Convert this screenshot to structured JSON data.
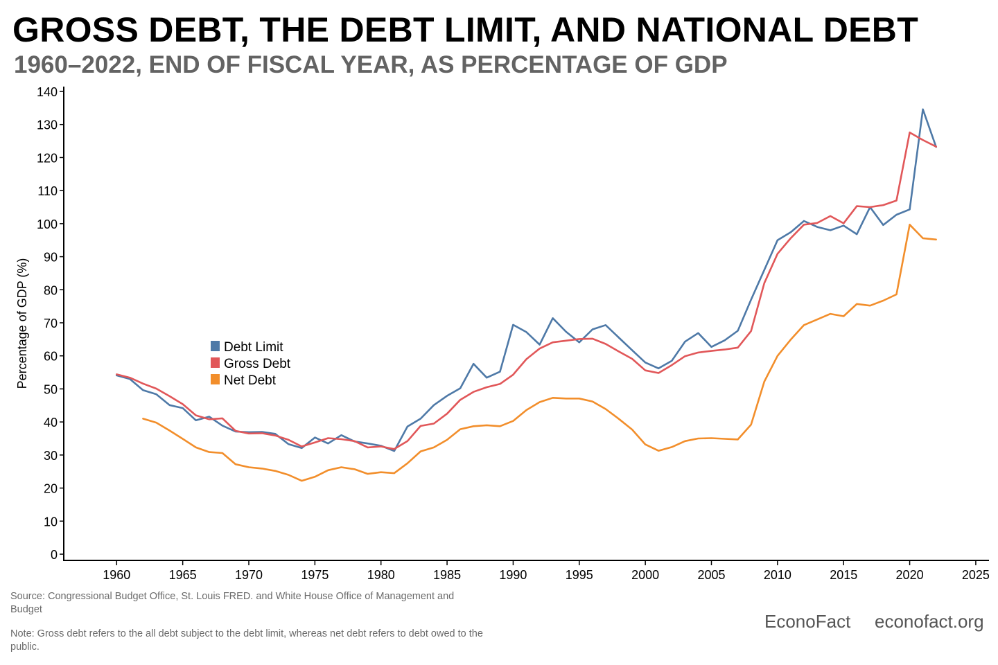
{
  "title": "GROSS DEBT, THE DEBT LIMIT, AND NATIONAL DEBT",
  "subtitle": "1960–2022, END OF FISCAL YEAR, AS PERCENTAGE OF GDP",
  "footer": {
    "source": "Source: Congressional Budget Office, St. Louis FRED. and White House Office of Management and Budget",
    "note": "Note: Gross debt refers to the all debt subject to the debt limit, whereas net debt refers to debt owed to the public.",
    "brand": "EconoFact",
    "site": "econofact.org"
  },
  "chart_data": {
    "type": "line",
    "title": "GROSS DEBT, THE DEBT LIMIT, AND NATIONAL DEBT",
    "xlabel": "",
    "ylabel": "Percentage of GDP (%)",
    "xlim": [
      1956,
      2026
    ],
    "ylim": [
      0,
      140
    ],
    "x_ticks": [
      1960,
      1965,
      1970,
      1975,
      1980,
      1985,
      1990,
      1995,
      2000,
      2005,
      2010,
      2015,
      2020,
      2025
    ],
    "y_ticks": [
      0,
      10,
      20,
      30,
      40,
      50,
      60,
      70,
      80,
      90,
      100,
      110,
      120,
      130,
      140
    ],
    "legend_position": "center-left",
    "series": [
      {
        "name": "Debt Limit",
        "color": "#4e79a7",
        "x": [
          1960,
          1961,
          1962,
          1963,
          1964,
          1965,
          1966,
          1967,
          1968,
          1969,
          1970,
          1971,
          1972,
          1973,
          1974,
          1975,
          1976,
          1977,
          1978,
          1979,
          1980,
          1981,
          1982,
          1983,
          1984,
          1985,
          1986,
          1987,
          1988,
          1989,
          1990,
          1991,
          1992,
          1993,
          1994,
          1995,
          1996,
          1997,
          1998,
          1999,
          2000,
          2001,
          2002,
          2003,
          2004,
          2005,
          2006,
          2007,
          2008,
          2009,
          2010,
          2011,
          2012,
          2013,
          2014,
          2015,
          2016,
          2017,
          2018,
          2019,
          2020,
          2021,
          2022
        ],
        "values": [
          54.1,
          53.0,
          49.6,
          48.4,
          45.1,
          44.2,
          40.5,
          41.6,
          38.9,
          37.1,
          36.9,
          37.0,
          36.4,
          33.3,
          32.1,
          35.3,
          33.5,
          36.0,
          34.1,
          33.5,
          32.8,
          31.2,
          38.6,
          41.0,
          45.1,
          47.9,
          50.2,
          57.6,
          53.4,
          55.2,
          69.4,
          67.2,
          63.4,
          71.4,
          67.3,
          64.1,
          68.0,
          69.3,
          65.5,
          61.7,
          58.0,
          56.2,
          58.5,
          64.3,
          66.9,
          62.7,
          64.7,
          67.6,
          77.0,
          86.0,
          95.0,
          97.4,
          100.8,
          99.0,
          98.0,
          99.4,
          96.8,
          105.0,
          99.6,
          102.7,
          104.3,
          134.6,
          123.2
        ]
      },
      {
        "name": "Gross Debt",
        "color": "#e15759",
        "x": [
          1960,
          1961,
          1962,
          1963,
          1964,
          1965,
          1966,
          1967,
          1968,
          1969,
          1970,
          1971,
          1972,
          1973,
          1974,
          1975,
          1976,
          1977,
          1978,
          1979,
          1980,
          1981,
          1982,
          1983,
          1984,
          1985,
          1986,
          1987,
          1988,
          1989,
          1990,
          1991,
          1992,
          1993,
          1994,
          1995,
          1996,
          1997,
          1998,
          1999,
          2000,
          2001,
          2002,
          2003,
          2004,
          2005,
          2006,
          2007,
          2008,
          2009,
          2010,
          2011,
          2012,
          2013,
          2014,
          2015,
          2016,
          2017,
          2018,
          2019,
          2020,
          2021,
          2022
        ],
        "values": [
          54.4,
          53.4,
          51.6,
          50.1,
          47.8,
          45.4,
          42.0,
          40.8,
          41.1,
          37.3,
          36.5,
          36.6,
          35.9,
          34.6,
          32.6,
          33.8,
          35.1,
          34.8,
          34.2,
          32.3,
          32.6,
          31.8,
          34.2,
          38.8,
          39.5,
          42.5,
          46.7,
          49.1,
          50.5,
          51.5,
          54.3,
          59.0,
          62.2,
          64.1,
          64.6,
          65.1,
          65.2,
          63.6,
          61.3,
          59.1,
          55.6,
          54.8,
          57.2,
          59.9,
          61.0,
          61.5,
          61.9,
          62.5,
          67.5,
          82.0,
          90.9,
          95.6,
          99.7,
          100.2,
          102.3,
          100.1,
          105.3,
          105.0,
          105.6,
          107.0,
          127.6,
          125.3,
          123.3
        ]
      },
      {
        "name": "Net Debt",
        "color": "#f28e2b",
        "x": [
          1962,
          1963,
          1964,
          1965,
          1966,
          1967,
          1968,
          1969,
          1970,
          1971,
          1972,
          1973,
          1974,
          1975,
          1976,
          1977,
          1978,
          1979,
          1980,
          1981,
          1982,
          1983,
          1984,
          1985,
          1986,
          1987,
          1988,
          1989,
          1990,
          1991,
          1992,
          1993,
          1994,
          1995,
          1996,
          1997,
          1998,
          1999,
          2000,
          2001,
          2002,
          2003,
          2004,
          2005,
          2006,
          2007,
          2008,
          2009,
          2010,
          2011,
          2012,
          2013,
          2014,
          2015,
          2016,
          2017,
          2018,
          2019,
          2020,
          2021,
          2022
        ],
        "values": [
          41.0,
          39.8,
          37.4,
          34.9,
          32.3,
          30.9,
          30.6,
          27.2,
          26.3,
          25.9,
          25.2,
          24.0,
          22.2,
          23.4,
          25.4,
          26.3,
          25.7,
          24.3,
          24.8,
          24.5,
          27.5,
          31.1,
          32.3,
          34.6,
          37.8,
          38.7,
          39.0,
          38.7,
          40.3,
          43.6,
          46.0,
          47.3,
          47.1,
          47.1,
          46.2,
          43.9,
          40.9,
          37.7,
          33.2,
          31.3,
          32.4,
          34.2,
          35.0,
          35.1,
          34.9,
          34.7,
          39.2,
          52.2,
          60.0,
          64.9,
          69.3,
          71.0,
          72.7,
          72.0,
          75.7,
          75.2,
          76.7,
          78.6,
          99.7,
          95.6,
          95.2
        ]
      }
    ]
  }
}
